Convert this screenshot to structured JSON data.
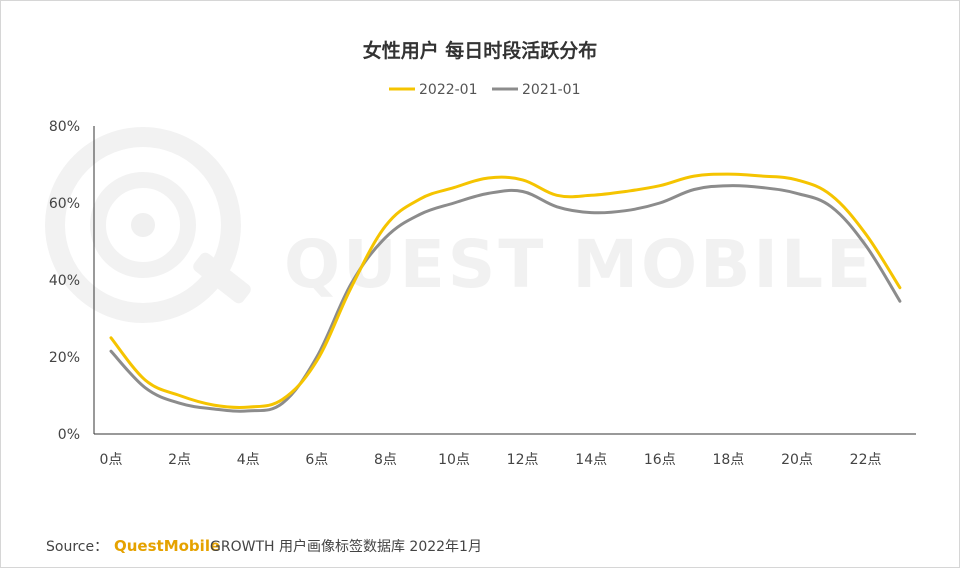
{
  "chart_data": {
    "type": "line",
    "title": "女性用户 每日时段活跃分布",
    "xlabel": "",
    "ylabel": "",
    "x": [
      0,
      1,
      2,
      3,
      4,
      5,
      6,
      7,
      8,
      9,
      10,
      11,
      12,
      13,
      14,
      15,
      16,
      17,
      18,
      19,
      20,
      21,
      22,
      23
    ],
    "x_tick_labels": [
      "0点",
      "2点",
      "4点",
      "6点",
      "8点",
      "10点",
      "12点",
      "14点",
      "16点",
      "18点",
      "20点",
      "22点"
    ],
    "y_tick_labels": [
      "0%",
      "20%",
      "40%",
      "60%",
      "80%"
    ],
    "ylim": [
      0,
      80
    ],
    "grid": false,
    "legend_position": "top-center",
    "series": [
      {
        "name": "2022-01",
        "color": "#f5c400",
        "values": [
          25,
          14,
          10,
          7.5,
          7,
          9,
          19,
          38,
          54,
          61,
          64,
          66.5,
          66,
          62,
          62,
          63,
          64.5,
          67,
          67.5,
          67,
          66,
          62,
          52,
          38
        ]
      },
      {
        "name": "2021-01",
        "color": "#8c8c8c",
        "values": [
          21.5,
          12,
          8,
          6.5,
          6,
          8,
          20,
          39,
          51,
          57,
          60,
          62.5,
          63,
          59,
          57.5,
          58,
          60,
          63.5,
          64.5,
          64,
          62.5,
          59,
          49,
          34.5
        ]
      }
    ]
  },
  "watermark": {
    "text": "QUEST MOBILE",
    "icon": "questmobile-logo-icon"
  },
  "source": {
    "label": "Source：",
    "brand": "QuestMobile",
    "text": "GROWTH 用户画像标签数据库 2022年1月"
  }
}
